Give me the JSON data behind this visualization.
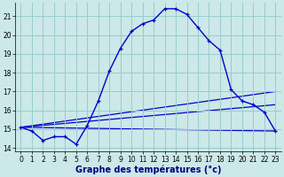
{
  "xlabel": "Graphe des températures (°c)",
  "bg_color": "#cce8e8",
  "grid_color": "#99cccc",
  "line_color": "#0000cc",
  "xlim_min": -0.5,
  "xlim_max": 23.5,
  "ylim_min": 13.8,
  "ylim_max": 21.7,
  "yticks": [
    14,
    15,
    16,
    17,
    18,
    19,
    20,
    21
  ],
  "xticks": [
    0,
    1,
    2,
    3,
    4,
    5,
    6,
    7,
    8,
    9,
    10,
    11,
    12,
    13,
    14,
    15,
    16,
    17,
    18,
    19,
    20,
    21,
    22,
    23
  ],
  "series1_x": [
    0,
    1,
    2,
    3,
    4,
    5,
    6,
    7,
    8,
    9,
    10,
    11,
    12,
    13,
    14,
    15,
    16,
    17,
    18,
    19,
    20,
    21,
    22,
    23
  ],
  "series1_y": [
    15.1,
    14.9,
    14.4,
    14.6,
    14.6,
    14.2,
    15.2,
    16.5,
    18.1,
    19.3,
    20.2,
    20.6,
    20.8,
    21.4,
    21.4,
    21.1,
    20.4,
    19.7,
    19.2,
    17.1,
    16.5,
    16.3,
    15.9,
    14.9
  ],
  "line1_x": [
    0,
    23
  ],
  "line1_y": [
    15.1,
    17.0
  ],
  "line2_x": [
    0,
    23
  ],
  "line2_y": [
    15.1,
    16.3
  ],
  "line3_x": [
    0,
    23
  ],
  "line3_y": [
    15.1,
    14.9
  ],
  "label_fontsize": 6.5,
  "tick_fontsize": 5.5,
  "xlabel_fontsize": 7.0
}
